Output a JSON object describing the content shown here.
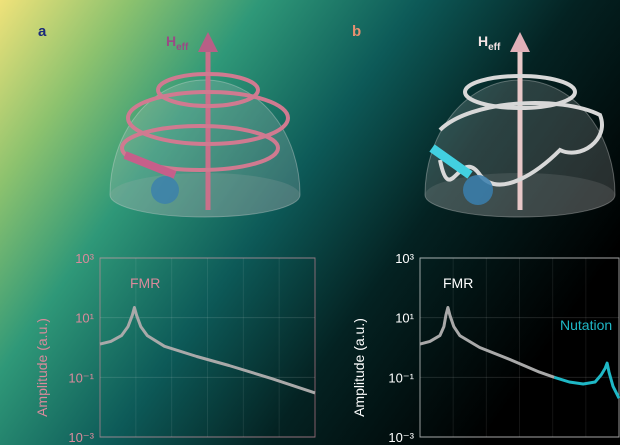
{
  "chart_data": [
    {
      "type": "line",
      "panel_label": "a",
      "vector_label": {
        "text": "H",
        "subscript": "eff"
      },
      "ylabel": "Amplitude (a.u.)",
      "yscale": "log",
      "ylim": [
        0.001,
        1000
      ],
      "yticks": [
        {
          "value": 1000,
          "label": "10³"
        },
        {
          "value": 10,
          "label": "10¹"
        },
        {
          "value": 0.1,
          "label": "10⁻¹"
        },
        {
          "value": 0.001,
          "label": "10⁻³"
        }
      ],
      "xlim": [
        0,
        100
      ],
      "grid": true,
      "axis_color": "#d98a9c",
      "annotations": [
        "FMR"
      ],
      "series": [
        {
          "color": "#a9a9a9",
          "x": [
            0,
            5,
            10,
            13,
            15,
            16,
            17,
            19,
            22,
            30,
            45,
            60,
            80,
            100
          ],
          "values": [
            1.3,
            1.6,
            2.5,
            5,
            12,
            22,
            12,
            5,
            2.5,
            1.1,
            0.5,
            0.25,
            0.09,
            0.03
          ]
        }
      ]
    },
    {
      "type": "line",
      "panel_label": "b",
      "vector_label": {
        "text": "H",
        "subscript": "eff"
      },
      "ylabel": "Amplitude (a.u.)",
      "yscale": "log",
      "ylim": [
        0.001,
        1000
      ],
      "yticks": [
        {
          "value": 1000,
          "label": "10³"
        },
        {
          "value": 10,
          "label": "10¹"
        },
        {
          "value": 0.1,
          "label": "10⁻¹"
        },
        {
          "value": 0.001,
          "label": "10⁻³"
        }
      ],
      "xlim": [
        0,
        100
      ],
      "grid": true,
      "axis_color": "#ffffff",
      "annotations": [
        "FMR",
        "Nutation"
      ],
      "series": [
        {
          "color": "#a9a9a9",
          "x": [
            0,
            5,
            10,
            12,
            13,
            14,
            15,
            17,
            20,
            30,
            45,
            60,
            67.5
          ],
          "values": [
            1.3,
            1.6,
            2.5,
            5,
            12,
            22,
            12,
            5,
            2.5,
            1.0,
            0.4,
            0.15,
            0.1
          ]
        },
        {
          "color": "#1fb8c6",
          "x": [
            67.5,
            75,
            82,
            88,
            91,
            93,
            94,
            95,
            97,
            100
          ],
          "values": [
            0.1,
            0.07,
            0.06,
            0.07,
            0.12,
            0.2,
            0.3,
            0.15,
            0.05,
            0.02
          ]
        }
      ]
    }
  ]
}
